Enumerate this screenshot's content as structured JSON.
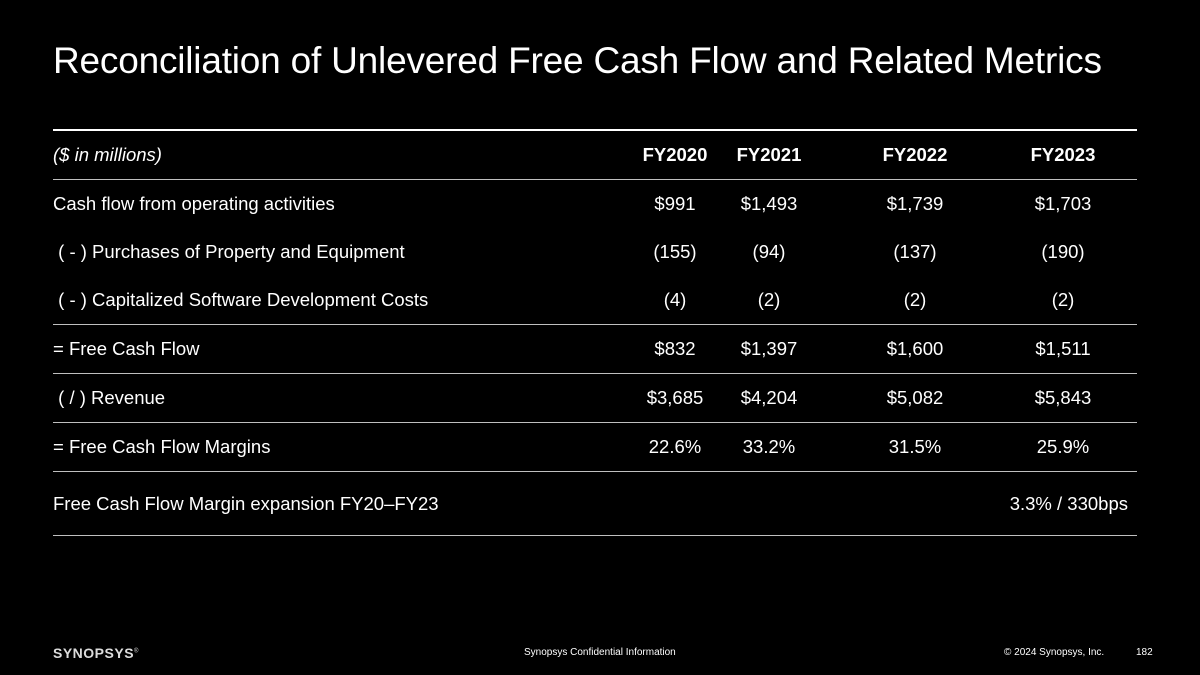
{
  "slide": {
    "title": "Reconciliation of Unlevered Free Cash Flow and Related Metrics"
  },
  "table": {
    "header": {
      "label": "($ in millions)",
      "columns": [
        "FY2020",
        "FY2021",
        "FY2022",
        "FY2023"
      ]
    },
    "rows": [
      {
        "label": "Cash flow from operating activities",
        "values": [
          "$991",
          "$1,493",
          "$1,739",
          "$1,703"
        ]
      },
      {
        "label": " ( - ) Purchases of Property and Equipment",
        "values": [
          "(155)",
          "(94)",
          "(137)",
          "(190)"
        ]
      },
      {
        "label": " ( - ) Capitalized Software Development Costs",
        "values": [
          "(4)",
          "(2)",
          "(2)",
          "(2)"
        ]
      },
      {
        "label": "= Free Cash Flow",
        "values": [
          "$832",
          "$1,397",
          "$1,600",
          "$1,511"
        ]
      },
      {
        "label": " ( / ) Revenue",
        "values": [
          "$3,685",
          "$4,204",
          "$5,082",
          "$5,843"
        ]
      },
      {
        "label": "= Free Cash Flow Margins",
        "values": [
          "22.6%",
          "33.2%",
          "31.5%",
          "25.9%"
        ]
      }
    ],
    "summary": {
      "label": "Free Cash Flow Margin expansion FY20–FY23",
      "value": "3.3% / 330bps"
    }
  },
  "footer": {
    "logo_text": "SYNOPSYS",
    "confidential": "Synopsys Confidential Information",
    "copyright": "© 2024 Synopsys, Inc.",
    "page_number": "182"
  },
  "colors": {
    "background": "#000000",
    "text": "#ffffff",
    "rule": "#bfbfbf"
  }
}
